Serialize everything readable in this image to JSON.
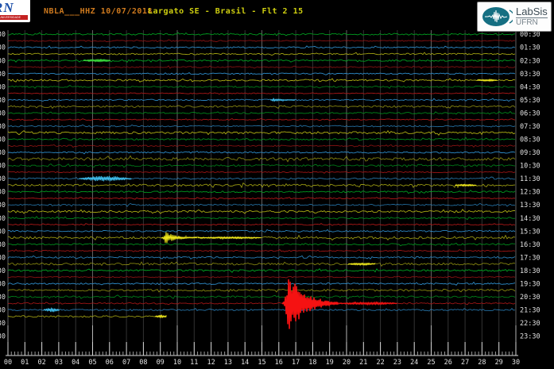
{
  "header": {
    "station_title": "NBLA___HHZ 10/07/2018",
    "location_title": "Largato SE - Brasil - Flt 2 15",
    "left_logo_letters": "RN",
    "left_logo_sub": "UNIVERSIDADE FEDERAL",
    "labsis_name": "LabSis",
    "labsis_org": "UFRN"
  },
  "colors": {
    "background": "#000000",
    "title1": "#cf7a1e",
    "title2": "#cfcf10",
    "grid_minor": "#333333",
    "grid_major": "#636363",
    "axis": "#d8d8d8",
    "label_text": "#e2e2e2",
    "trace_green": "#00a321",
    "trace_red": "#b41818",
    "trace_blue": "#2e8fd0",
    "trace_yellow": "#b0b014",
    "bright_green": "#3ddd3d",
    "bright_red": "#f51212",
    "bright_blue": "#3fc0f0",
    "bright_yellow": "#f0e81c",
    "logo_teal": "#156f82"
  },
  "chart_data": {
    "type": "line",
    "subtype": "helicorder-seismogram",
    "title": "NBLA___HHZ 10/07/2018",
    "subtitle": "Largato SE - Brasil - Flt 2 15",
    "minutes_per_line": 30,
    "x_axis_ticks": [
      "00",
      "01",
      "02",
      "03",
      "04",
      "05",
      "06",
      "07",
      "08",
      "09",
      "10",
      "11",
      "12",
      "13",
      "14",
      "15",
      "16",
      "17",
      "18",
      "19",
      "20",
      "21",
      "22",
      "23",
      "24",
      "25",
      "26",
      "27",
      "28",
      "29",
      "30"
    ],
    "x_range_minutes": [
      0,
      30
    ],
    "grid": "on",
    "right_time_labels": [
      "00:30",
      "01:30",
      "02:30",
      "03:30",
      "04:30",
      "05:30",
      "06:30",
      "07:30",
      "08:30",
      "09:30",
      "10:30",
      "11:30",
      "12:30",
      "13:30",
      "14:30",
      "15:30",
      "16:30",
      "17:30",
      "18:30",
      "19:30",
      "20:30",
      "21:30",
      "22:30",
      "23:30"
    ],
    "color_cycle": [
      "green",
      "red",
      "blue",
      "yellow"
    ],
    "rows": [
      {
        "start": "00:30",
        "color": "green",
        "amp": 1.0
      },
      {
        "start": "01:00",
        "color": "red",
        "amp": 0.7
      },
      {
        "start": "01:30",
        "color": "blue",
        "amp": 0.9
      },
      {
        "start": "02:00",
        "color": "yellow",
        "amp": 0.9
      },
      {
        "start": "02:30",
        "color": "green",
        "amp": 1.0
      },
      {
        "start": "03:00",
        "color": "red",
        "amp": 0.7
      },
      {
        "start": "03:30",
        "color": "blue",
        "amp": 0.8
      },
      {
        "start": "04:00",
        "color": "yellow",
        "amp": 1.1
      },
      {
        "start": "04:30",
        "color": "green",
        "amp": 0.9
      },
      {
        "start": "05:00",
        "color": "red",
        "amp": 0.6
      },
      {
        "start": "05:30",
        "color": "blue",
        "amp": 0.8
      },
      {
        "start": "06:00",
        "color": "yellow",
        "amp": 1.2
      },
      {
        "start": "06:30",
        "color": "green",
        "amp": 0.9
      },
      {
        "start": "07:00",
        "color": "red",
        "amp": 0.7
      },
      {
        "start": "07:30",
        "color": "blue",
        "amp": 0.8
      },
      {
        "start": "08:00",
        "color": "yellow",
        "amp": 1.4
      },
      {
        "start": "08:30",
        "color": "green",
        "amp": 1.0
      },
      {
        "start": "09:00",
        "color": "red",
        "amp": 0.8
      },
      {
        "start": "09:30",
        "color": "blue",
        "amp": 0.9
      },
      {
        "start": "10:00",
        "color": "yellow",
        "amp": 1.8
      },
      {
        "start": "10:30",
        "color": "green",
        "amp": 1.1
      },
      {
        "start": "11:00",
        "color": "red",
        "amp": 0.7
      },
      {
        "start": "11:30",
        "color": "blue",
        "amp": 1.0
      },
      {
        "start": "12:00",
        "color": "yellow",
        "amp": 1.3
      },
      {
        "start": "12:30",
        "color": "green",
        "amp": 1.0
      },
      {
        "start": "13:00",
        "color": "red",
        "amp": 0.7
      },
      {
        "start": "13:30",
        "color": "blue",
        "amp": 0.9
      },
      {
        "start": "14:00",
        "color": "yellow",
        "amp": 1.2
      },
      {
        "start": "14:30",
        "color": "green",
        "amp": 1.0
      },
      {
        "start": "15:00",
        "color": "red",
        "amp": 0.7
      },
      {
        "start": "15:30",
        "color": "blue",
        "amp": 0.9
      },
      {
        "start": "16:00",
        "color": "yellow",
        "amp": 1.4
      },
      {
        "start": "16:30",
        "color": "green",
        "amp": 1.0
      },
      {
        "start": "17:00",
        "color": "red",
        "amp": 0.7
      },
      {
        "start": "17:30",
        "color": "blue",
        "amp": 0.9
      },
      {
        "start": "18:00",
        "color": "yellow",
        "amp": 1.3
      },
      {
        "start": "18:30",
        "color": "green",
        "amp": 1.1
      },
      {
        "start": "19:00",
        "color": "red",
        "amp": 0.7
      },
      {
        "start": "19:30",
        "color": "blue",
        "amp": 0.9
      },
      {
        "start": "20:00",
        "color": "yellow",
        "amp": 1.2
      },
      {
        "start": "20:30",
        "color": "green",
        "amp": 1.1
      },
      {
        "start": "21:00",
        "color": "red",
        "amp": 0.8
      },
      {
        "start": "21:30",
        "color": "blue",
        "amp": 0.9
      },
      {
        "start": "22:00",
        "color": "yellow",
        "amp": 1.2,
        "end_minute": 9.4
      }
    ],
    "events": [
      {
        "row": 4,
        "m1": 4.46,
        "m2": 6.1,
        "amp": 2.0,
        "shape": "spindle",
        "note": "small green burst ~02:35"
      },
      {
        "row": 7,
        "m1": 27.7,
        "m2": 28.9,
        "amp": 1.5,
        "shape": "spindle",
        "note": "yellow segment ~04:28"
      },
      {
        "row": 10,
        "m1": 15.5,
        "m2": 17.0,
        "amp": 2.2,
        "shape": "quake",
        "note": "blue event ~05:46"
      },
      {
        "row": 22,
        "m1": 4.2,
        "m2": 7.3,
        "amp": 3.0,
        "shape": "spindle",
        "note": "blue tremor ~11:35"
      },
      {
        "row": 23,
        "m1": 26.4,
        "m2": 27.7,
        "amp": 1.5,
        "shape": "spindle",
        "note": "yellow segment ~12:27"
      },
      {
        "row": 31,
        "m1": 9.06,
        "m2": 11.2,
        "amp": 7.5,
        "shape": "quake",
        "note": "large yellow event ~16:09"
      },
      {
        "row": 31,
        "m1": 11.2,
        "m2": 15.0,
        "amp": 1.3,
        "shape": "spindle",
        "note": "coda of 16:09 event"
      },
      {
        "row": 35,
        "m1": 20.1,
        "m2": 21.7,
        "amp": 1.6,
        "shape": "spindle",
        "note": "yellow segment ~18:20"
      },
      {
        "row": 41,
        "m1": 16.2,
        "m2": 19.5,
        "amp": 38.0,
        "shape": "quake",
        "note": "largest event, red spike ~21:16"
      },
      {
        "row": 41,
        "m1": 19.5,
        "m2": 23.0,
        "amp": 2.0,
        "shape": "spindle",
        "note": "coda of 21:16 event"
      },
      {
        "row": 42,
        "m1": 2.1,
        "m2": 3.05,
        "amp": 2.5,
        "shape": "spindle",
        "note": "small blue event ~21:32"
      },
      {
        "row": 43,
        "m1": 8.7,
        "m2": 9.4,
        "amp": 2.0,
        "shape": "spindle",
        "note": "latest-data blob ~22:09"
      }
    ]
  }
}
